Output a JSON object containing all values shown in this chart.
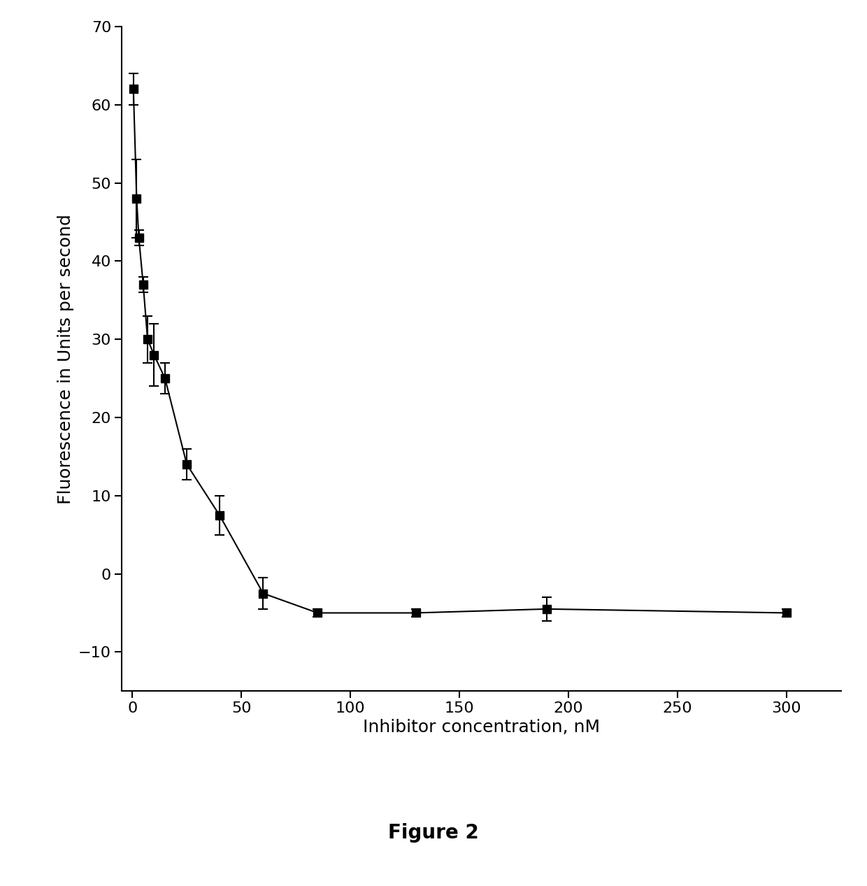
{
  "x": [
    0.5,
    2,
    3,
    5,
    7,
    10,
    15,
    25,
    40,
    60,
    85,
    130,
    190,
    300
  ],
  "y": [
    62,
    48,
    43,
    37,
    30,
    28,
    25,
    14,
    7.5,
    -2.5,
    -5,
    -5,
    -4.5,
    -5
  ],
  "yerr": [
    2,
    5,
    1,
    1,
    3,
    4,
    2,
    2,
    2.5,
    2,
    0.5,
    0.5,
    1.5,
    0.5
  ],
  "xlabel": "Inhibitor concentration, nM",
  "ylabel": "Fluorescence in Units per second",
  "figure_label": "Figure 2",
  "xlim": [
    -5,
    325
  ],
  "ylim": [
    -15,
    70
  ],
  "xticks": [
    0,
    50,
    100,
    150,
    200,
    250,
    300
  ],
  "yticks": [
    -10,
    0,
    10,
    20,
    30,
    40,
    50,
    60,
    70
  ],
  "marker": "s",
  "marker_size": 9,
  "line_color": "#000000",
  "background_color": "#ffffff",
  "figure_label_fontsize": 20,
  "axis_label_fontsize": 18,
  "tick_fontsize": 16
}
